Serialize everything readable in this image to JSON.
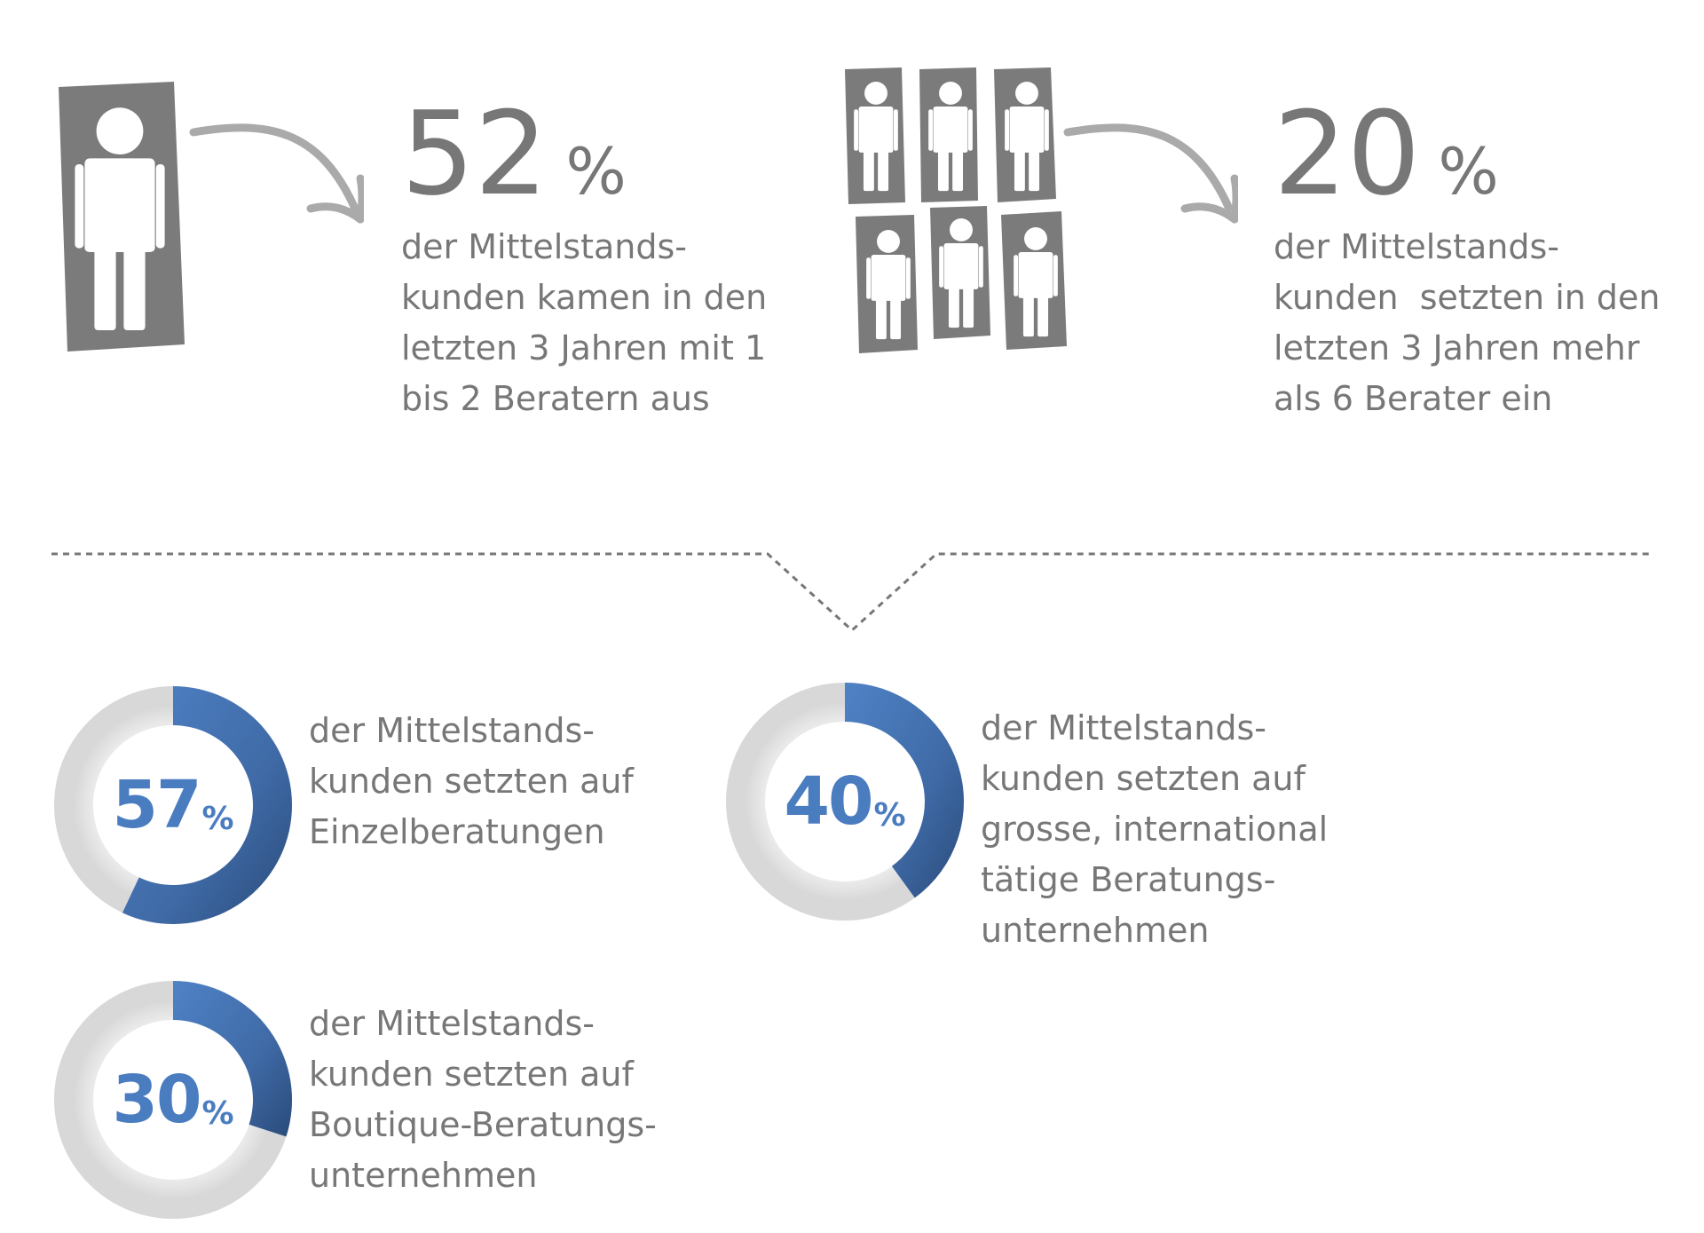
{
  "stats": [
    {
      "value": "52",
      "unit": "%",
      "text": "der Mittelstands-\nkunden kamen in den\nletzten 3 Jahren mit 1\nbis 2 Beratern aus",
      "icon": "single-person-icon"
    },
    {
      "value": "20",
      "unit": "%",
      "text": "der Mittelstands-\nkunden  setzten in den\nletzten 3 Jahren mehr\nals 6 Berater ein",
      "icon": "six-persons-icon"
    }
  ],
  "chart_data": [
    {
      "type": "pie",
      "value": 57,
      "unit": "%",
      "text": "der Mittelstands-\nkunden setzten auf\nEinzelberatungen"
    },
    {
      "type": "pie",
      "value": 40,
      "unit": "%",
      "text": "der Mittelstands-\nkunden setzten auf\ngrosse, international\ntätige Beratungs-\nunternehmen"
    },
    {
      "type": "pie",
      "value": 30,
      "unit": "%",
      "text": "der Mittelstands-\nkunden setzten auf\nBoutique-Beratungs-\nunternehmen"
    }
  ],
  "colors": {
    "text_gray": "#777777",
    "icon_gray": "#7b7b7b",
    "arrow_gray": "#aaaaaa",
    "accent_blue": "#4a7cc0",
    "accent_blue_dark": "#2c4f7c",
    "ring_gray": "#e6e6e6"
  }
}
